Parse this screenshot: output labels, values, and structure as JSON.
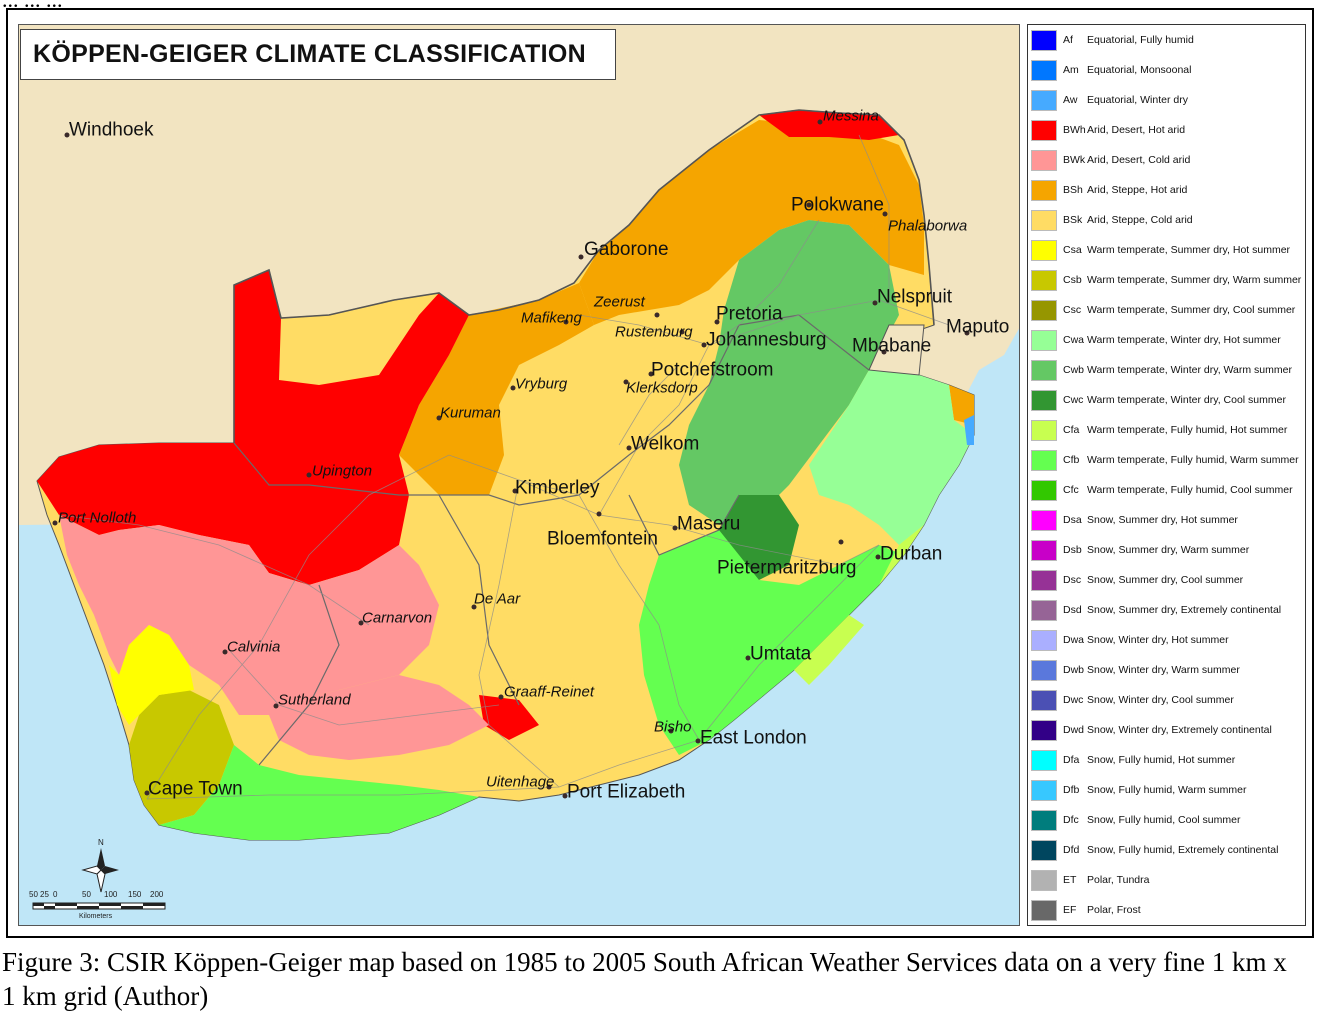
{
  "map": {
    "title": "KÖPPEN-GEIGER CLIMATE CLASSIFICATION",
    "cities": [
      {
        "name": "Windhoek",
        "style": "normal"
      },
      {
        "name": "Messina",
        "style": "italic"
      },
      {
        "name": "Polokwane",
        "style": "normal"
      },
      {
        "name": "Phalaborwa",
        "style": "italic"
      },
      {
        "name": "Gaborone",
        "style": "normal"
      },
      {
        "name": "Nelspruit",
        "style": "normal"
      },
      {
        "name": "Zeerust",
        "style": "italic"
      },
      {
        "name": "Pretoria",
        "style": "normal"
      },
      {
        "name": "Mafikeng",
        "style": "italic"
      },
      {
        "name": "Maputo",
        "style": "normal"
      },
      {
        "name": "Rustenburg",
        "style": "italic"
      },
      {
        "name": "Johannesburg",
        "style": "normal"
      },
      {
        "name": "Mbabane",
        "style": "normal"
      },
      {
        "name": "Potchefstroom",
        "style": "normal"
      },
      {
        "name": "Vryburg",
        "style": "italic"
      },
      {
        "name": "Klerksdorp",
        "style": "italic"
      },
      {
        "name": "Kuruman",
        "style": "italic"
      },
      {
        "name": "Welkom",
        "style": "normal"
      },
      {
        "name": "Upington",
        "style": "italic"
      },
      {
        "name": "Kimberley",
        "style": "normal"
      },
      {
        "name": "Port Nolloth",
        "style": "italic"
      },
      {
        "name": "Maseru",
        "style": "normal"
      },
      {
        "name": "Bloemfontein",
        "style": "normal"
      },
      {
        "name": "Durban",
        "style": "normal"
      },
      {
        "name": "Pietermaritzburg",
        "style": "normal"
      },
      {
        "name": "De Aar",
        "style": "italic"
      },
      {
        "name": "Carnarvon",
        "style": "italic"
      },
      {
        "name": "Calvinia",
        "style": "italic"
      },
      {
        "name": "Umtata",
        "style": "normal"
      },
      {
        "name": "Sutherland",
        "style": "italic"
      },
      {
        "name": "Graaff-Reinet",
        "style": "italic"
      },
      {
        "name": "Bisho",
        "style": "italic"
      },
      {
        "name": "East London",
        "style": "normal"
      },
      {
        "name": "Cape Town",
        "style": "normal"
      },
      {
        "name": "Uitenhage",
        "style": "italic"
      },
      {
        "name": "Port Elizabeth",
        "style": "normal"
      }
    ],
    "north_label": "N",
    "scale_ticks": [
      "50",
      "25",
      "0",
      "50",
      "100",
      "150",
      "200"
    ],
    "scale_unit": "Kilometers"
  },
  "legend": [
    {
      "code": "Af",
      "desc": "Equatorial, Fully humid",
      "color": "#0000ff"
    },
    {
      "code": "Am",
      "desc": "Equatorial, Monsoonal",
      "color": "#0077ff"
    },
    {
      "code": "Aw",
      "desc": "Equatorial, Winter dry",
      "color": "#46aaff"
    },
    {
      "code": "BWh",
      "desc": "Arid, Desert, Hot arid",
      "color": "#ff0000"
    },
    {
      "code": "BWk",
      "desc": "Arid, Desert, Cold arid",
      "color": "#ff9696"
    },
    {
      "code": "BSh",
      "desc": "Arid, Steppe, Hot arid",
      "color": "#f5a500"
    },
    {
      "code": "BSk",
      "desc": "Arid, Steppe, Cold arid",
      "color": "#ffdc64"
    },
    {
      "code": "Csa",
      "desc": "Warm temperate, Summer dry, Hot summer",
      "color": "#ffff00"
    },
    {
      "code": "Csb",
      "desc": "Warm temperate, Summer dry, Warm summer",
      "color": "#c8c800"
    },
    {
      "code": "Csc",
      "desc": "Warm temperate, Summer dry, Cool summer",
      "color": "#969600"
    },
    {
      "code": "Cwa",
      "desc": "Warm temperate, Winter dry, Hot summer",
      "color": "#96ff96"
    },
    {
      "code": "Cwb",
      "desc": "Warm temperate, Winter dry, Warm summer",
      "color": "#64c864"
    },
    {
      "code": "Cwc",
      "desc": "Warm temperate, Winter dry, Cool summer",
      "color": "#329632"
    },
    {
      "code": "Cfa",
      "desc": "Warm temperate, Fully humid, Hot summer",
      "color": "#c8ff50"
    },
    {
      "code": "Cfb",
      "desc": "Warm temperate, Fully humid, Warm summer",
      "color": "#64ff50"
    },
    {
      "code": "Cfc",
      "desc": "Warm temperate, Fully humid, Cool summer",
      "color": "#32c800"
    },
    {
      "code": "Dsa",
      "desc": "Snow, Summer dry, Hot summer",
      "color": "#ff00ff"
    },
    {
      "code": "Dsb",
      "desc": "Snow, Summer dry, Warm summer",
      "color": "#c800c8"
    },
    {
      "code": "Dsc",
      "desc": "Snow, Summer dry, Cool summer",
      "color": "#963296"
    },
    {
      "code": "Dsd",
      "desc": "Snow, Summer dry, Extremely continental",
      "color": "#966496"
    },
    {
      "code": "Dwa",
      "desc": "Snow, Winter dry, Hot summer",
      "color": "#aaafff"
    },
    {
      "code": "Dwb",
      "desc": "Snow, Winter dry, Warm summer",
      "color": "#5a78dc"
    },
    {
      "code": "Dwc",
      "desc": "Snow, Winter dry, Cool summer",
      "color": "#4b50b4"
    },
    {
      "code": "Dwd",
      "desc": "Snow, Winter dry, Extremely continental",
      "color": "#320087"
    },
    {
      "code": "Dfa",
      "desc": "Snow, Fully humid, Hot summer",
      "color": "#00ffff"
    },
    {
      "code": "Dfb",
      "desc": "Snow, Fully humid, Warm summer",
      "color": "#37c8ff"
    },
    {
      "code": "Dfc",
      "desc": "Snow, Fully humid, Cool summer",
      "color": "#007d7d"
    },
    {
      "code": "Dfd",
      "desc": "Snow, Fully humid, Extremely continental",
      "color": "#00465f"
    },
    {
      "code": "ET",
      "desc": "Polar, Tundra",
      "color": "#b2b2b2"
    },
    {
      "code": "EF",
      "desc": "Polar, Frost",
      "color": "#686868"
    }
  ],
  "caption": "Figure 3: CSIR Köppen-Geiger map based on 1985 to 2005 South African Weather Services data on a very fine 1 km x 1 km grid (Author)",
  "colors": {
    "ocean": "#bfe6f7",
    "neighbor_land": "#f2e4c1",
    "road": "#8c8c8c",
    "border": "#666666"
  }
}
